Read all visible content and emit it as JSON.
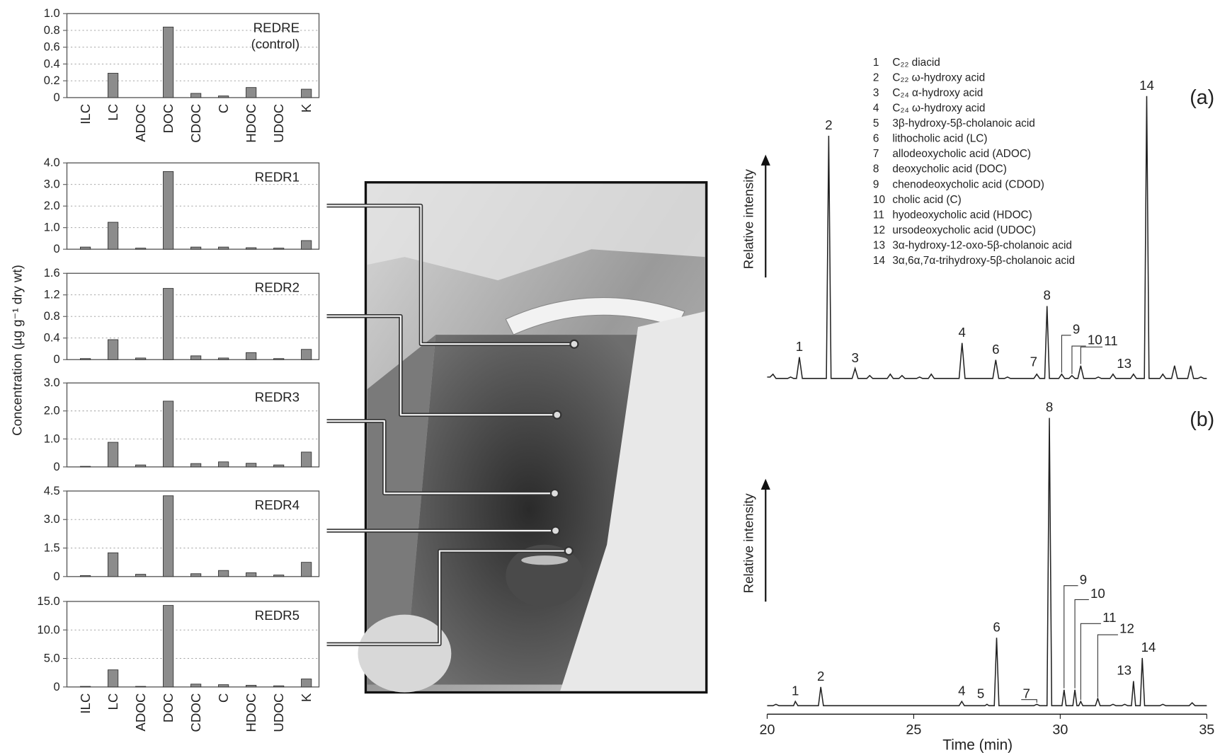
{
  "figure": {
    "ylabel": "Concentration (µg g⁻¹ dry wt)"
  },
  "chart_data": [
    {
      "type": "bar",
      "title": "REDRE",
      "subtitle": "(control)",
      "color": "#8c8c8c",
      "categories": [
        "ILC",
        "LC",
        "ADOC",
        "DOC",
        "CDOC",
        "C",
        "HDOC",
        "UDOC",
        "K"
      ],
      "values": [
        0,
        0.29,
        0,
        0.84,
        0.05,
        0.02,
        0.12,
        0,
        0.1
      ],
      "ylim": [
        0,
        1
      ],
      "yticks": [
        0,
        0.2,
        0.4,
        0.6,
        0.8,
        {
          "value": 1,
          "label": "1.0"
        }
      ],
      "grid": true
    },
    {
      "type": "bar",
      "title": "REDR1",
      "color": "#8c8c8c",
      "values": [
        0.1,
        1.25,
        0.05,
        3.6,
        0.1,
        0.1,
        0.07,
        0.05,
        0.4
      ],
      "ylim": [
        0,
        4
      ],
      "yticks": [
        0,
        {
          "value": 1,
          "label": "1.0"
        },
        {
          "value": 2,
          "label": "2.0"
        },
        {
          "value": 3,
          "label": "3.0"
        },
        {
          "value": 4,
          "label": "4.0"
        }
      ],
      "grid": true
    },
    {
      "type": "bar",
      "title": "REDR2",
      "color": "#8c8c8c",
      "values": [
        0.02,
        0.37,
        0.03,
        1.32,
        0.07,
        0.03,
        0.13,
        0.02,
        0.19
      ],
      "ylim": [
        0,
        1.6
      ],
      "yticks": [
        0,
        0.4,
        0.8,
        1.2,
        1.6
      ],
      "grid": true
    },
    {
      "type": "bar",
      "title": "REDR3",
      "color": "#8c8c8c",
      "values": [
        0.02,
        0.88,
        0.07,
        2.35,
        0.12,
        0.18,
        0.13,
        0.07,
        0.53
      ],
      "ylim": [
        0,
        3
      ],
      "yticks": [
        0,
        {
          "value": 1,
          "label": "1.0"
        },
        {
          "value": 2,
          "label": "2.0"
        },
        {
          "value": 3,
          "label": "3.0"
        }
      ],
      "grid": true
    },
    {
      "type": "bar",
      "title": "REDR4",
      "color": "#8c8c8c",
      "values": [
        0.05,
        1.25,
        0.12,
        4.25,
        0.15,
        0.32,
        0.2,
        0.08,
        0.75
      ],
      "ylim": [
        0,
        4.5
      ],
      "yticks": [
        0,
        1.5,
        {
          "value": 3,
          "label": "3.0"
        },
        4.5
      ],
      "grid": true
    },
    {
      "type": "bar",
      "title": "REDR5",
      "color": "#8c8c8c",
      "categories": [
        "ILC",
        "LC",
        "ADOC",
        "DOC",
        "CDOC",
        "C",
        "HDOC",
        "UDOC",
        "K"
      ],
      "values": [
        0.1,
        3.0,
        0.1,
        14.3,
        0.5,
        0.4,
        0.3,
        0.2,
        1.4
      ],
      "ylim": [
        0,
        15
      ],
      "yticks": [
        0,
        {
          "value": 5,
          "label": "5.0"
        },
        {
          "value": 10,
          "label": "10.0"
        },
        {
          "value": 15,
          "label": "15.0"
        }
      ],
      "grid": true
    },
    {
      "type": "line",
      "panel": "(a)",
      "ylabel": "Relative intensity",
      "color": "#222222",
      "xlim": [
        20,
        35
      ],
      "ylim": [
        0,
        100
      ],
      "x": [
        20,
        20.1,
        20.2,
        20.3,
        20.7,
        20.8,
        20.9,
        21.0,
        21.1,
        21.2,
        22.02,
        22.1,
        22.18,
        22.9,
        23.0,
        23.1,
        23.4,
        23.5,
        23.6,
        24.1,
        24.2,
        24.3,
        24.5,
        24.6,
        24.7,
        25.1,
        25.2,
        25.3,
        25.5,
        25.6,
        25.7,
        26.55,
        26.65,
        26.75,
        27.7,
        27.8,
        27.9,
        28.1,
        28.2,
        28.3,
        29.1,
        29.2,
        29.3,
        29.47,
        29.55,
        29.63,
        29.95,
        30.05,
        30.15,
        30.3,
        30.4,
        30.5,
        30.6,
        30.7,
        30.8,
        31.2,
        31.3,
        31.4,
        31.7,
        31.8,
        31.9,
        32.4,
        32.5,
        32.6,
        32.87,
        32.95,
        33.03,
        33.4,
        33.5,
        33.6,
        33.8,
        33.9,
        34.0,
        34.35,
        34.45,
        34.55,
        34.7,
        34.8,
        34.9,
        35
      ],
      "values": [
        1,
        1,
        2,
        0.5,
        0.5,
        1,
        0.5,
        0.5,
        8,
        0.5,
        0.5,
        86,
        0.5,
        0.5,
        4,
        0.5,
        0.5,
        1.5,
        0.5,
        0.5,
        2,
        0.5,
        0.5,
        1.5,
        0.5,
        0.5,
        1,
        0.5,
        0.5,
        2,
        0.5,
        0.5,
        13,
        0.5,
        0.5,
        7,
        0.5,
        0.5,
        1,
        0.5,
        0.5,
        2,
        0.5,
        0.5,
        26,
        0.5,
        0.5,
        2,
        0.5,
        0.5,
        1.5,
        0.5,
        0.5,
        5,
        0.5,
        0.5,
        1,
        0.5,
        0.5,
        2,
        0.5,
        0.5,
        2,
        0.5,
        0.5,
        100,
        0.5,
        0.5,
        2,
        0.5,
        0.5,
        5,
        0.5,
        0.5,
        5,
        0.5,
        0.5,
        1,
        0.5,
        0.5
      ],
      "peak_labels": [
        {
          "text": "1",
          "x": 21.1
        },
        {
          "text": "2",
          "x": 22.1
        },
        {
          "text": "3",
          "x": 23.0
        },
        {
          "text": "4",
          "x": 26.65
        },
        {
          "text": "6",
          "x": 27.8
        },
        {
          "text": "7",
          "x": 29.2
        },
        {
          "text": "8",
          "x": 29.55
        },
        {
          "text": "9",
          "x": 30.05
        },
        {
          "text": "10",
          "x": 30.4
        },
        {
          "text": "11",
          "x": 30.7
        },
        {
          "text": "13",
          "x": 32.5
        },
        {
          "text": "14",
          "x": 32.95
        }
      ],
      "legend": [
        {
          "number": "1",
          "name": "C₂₂ diacid"
        },
        {
          "number": "2",
          "name": "C₂₂ ω-hydroxy acid"
        },
        {
          "number": "3",
          "name": "C₂₄ α-hydroxy acid"
        },
        {
          "number": "4",
          "name": "C₂₄ ω-hydroxy acid"
        },
        {
          "number": "5",
          "name": "3β-hydroxy-5β-cholanoic acid"
        },
        {
          "number": "6",
          "name": "lithocholic acid (LC)"
        },
        {
          "number": "7",
          "name": "allodeoxycholic acid (ADOC)"
        },
        {
          "number": "8",
          "name": "deoxycholic acid (DOC)"
        },
        {
          "number": "9",
          "name": "chenodeoxycholic acid (CDOD)"
        },
        {
          "number": "10",
          "name": "cholic acid (C)"
        },
        {
          "number": "11",
          "name": "hyodeoxycholic acid (HDOC)"
        },
        {
          "number": "12",
          "name": "ursodeoxycholic acid (UDOC)"
        },
        {
          "number": "13",
          "name": "3α-hydroxy-12-oxo-5β-cholanoic acid"
        },
        {
          "number": "14",
          "name": "3α,6α,7α-trihydroxy-5β-cholanoic acid"
        }
      ]
    },
    {
      "type": "line",
      "panel": "(b)",
      "ylabel": "Relative intensity",
      "xlabel": "Time (min)",
      "color": "#222222",
      "xlim": [
        20,
        35
      ],
      "xticks": [
        20,
        25,
        30,
        35
      ],
      "ylim": [
        0,
        100
      ],
      "x": [
        20,
        20.2,
        20.3,
        20.4,
        20.9,
        20.96,
        21.05,
        21.75,
        21.83,
        21.92,
        22.4,
        22.5,
        22.6,
        23.2,
        23.3,
        23.4,
        24.1,
        24.2,
        24.3,
        25.5,
        25.6,
        25.7,
        26.55,
        26.64,
        26.73,
        27.1,
        27.2,
        27.3,
        27.43,
        27.5,
        27.57,
        27.75,
        27.83,
        27.91,
        28.2,
        28.3,
        28.4,
        29.1,
        29.2,
        29.3,
        29.55,
        29.63,
        29.71,
        30.06,
        30.13,
        30.2,
        30.43,
        30.5,
        30.57,
        30.63,
        30.7,
        30.77,
        31.2,
        31.28,
        31.36,
        31.7,
        31.8,
        31.9,
        32.1,
        32.2,
        32.3,
        32.43,
        32.5,
        32.57,
        32.73,
        32.8,
        32.88,
        33.4,
        33.5,
        33.6,
        34.4,
        34.5,
        34.6,
        35
      ],
      "values": [
        0.5,
        0.5,
        1,
        0.5,
        0.5,
        2,
        0.5,
        0.5,
        7,
        0.5,
        0.5,
        0.5,
        0.5,
        0.5,
        0.5,
        0.5,
        0.5,
        0.5,
        0.5,
        0.5,
        0.5,
        0.5,
        0.5,
        2,
        0.5,
        0.5,
        0.5,
        0.5,
        0.5,
        1,
        0.5,
        0.5,
        24,
        0.5,
        0.5,
        0.5,
        0.5,
        0.5,
        1,
        0.5,
        0.5,
        100,
        0.5,
        0.5,
        6,
        0.5,
        0.5,
        6,
        0.5,
        0.5,
        2,
        0.5,
        0.5,
        3,
        0.5,
        0.5,
        1,
        0.5,
        0.5,
        1,
        0.5,
        0.5,
        9,
        0.5,
        0.5,
        17,
        0.5,
        0.5,
        1,
        0.5,
        0.5,
        1.5,
        0.5,
        0.5
      ],
      "peak_labels": [
        {
          "text": "1",
          "x": 20.96
        },
        {
          "text": "2",
          "x": 21.83
        },
        {
          "text": "4",
          "x": 26.64
        },
        {
          "text": "5",
          "x": 27.5
        },
        {
          "text": "6",
          "x": 27.83
        },
        {
          "text": "7",
          "x": 29.2
        },
        {
          "text": "8",
          "x": 29.63
        },
        {
          "text": "9",
          "x": 30.13
        },
        {
          "text": "10",
          "x": 30.5
        },
        {
          "text": "11",
          "x": 30.7
        },
        {
          "text": "12",
          "x": 31.28
        },
        {
          "text": "13",
          "x": 32.5
        },
        {
          "text": "14",
          "x": 32.8
        }
      ]
    }
  ]
}
